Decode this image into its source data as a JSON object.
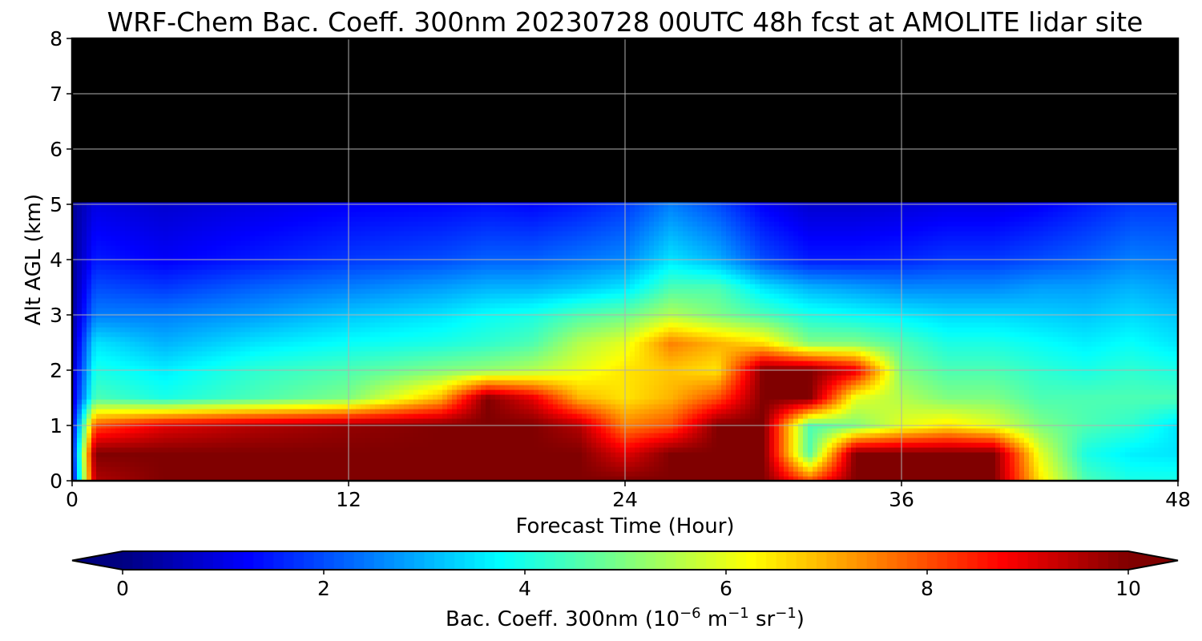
{
  "title": "WRF-Chem Bac. Coeff. 300nm  20230728 00UTC 48h fcst at AMOLITE lidar site",
  "chart_data": {
    "type": "heatmap",
    "title": "WRF-Chem Bac. Coeff. 300nm  20230728 00UTC 48h fcst at AMOLITE lidar site",
    "xlabel": "Forecast Time (Hour)",
    "ylabel": "Alt AGL (km)",
    "xlim": [
      0,
      48
    ],
    "ylim": [
      0,
      8
    ],
    "xticks": [
      "0",
      "12",
      "24",
      "36",
      "48"
    ],
    "yticks": [
      "0",
      "1",
      "2",
      "3",
      "4",
      "5",
      "6",
      "7",
      "8"
    ],
    "grid": true,
    "colorbar": {
      "label_prefix": "Bac. Coeff. 300nm  (10",
      "label_exp1": "−6",
      "label_mid": " m",
      "label_exp2": "−1",
      "label_mid2": " sr",
      "label_exp3": "−1",
      "label_suffix": ")",
      "range": [
        0,
        10
      ],
      "ticks": [
        "0",
        "2",
        "4",
        "6",
        "8",
        "10"
      ],
      "colormap": "jet",
      "extend": "both"
    },
    "x": [
      0,
      1,
      4,
      8,
      12,
      16,
      18,
      20,
      22,
      24,
      26,
      28,
      30,
      32,
      34,
      36,
      38,
      40,
      42,
      44,
      46,
      48
    ],
    "levels": [
      0,
      0.5,
      1,
      1.5,
      2,
      2.5,
      3,
      3.5,
      4,
      5,
      6,
      7,
      8
    ],
    "z": [
      [
        1.0,
        1.2,
        1.0,
        0.8,
        0.6,
        0.4,
        0.3,
        0.2,
        0.2,
        0.2
      ],
      [
        9.5,
        10.0,
        8.0,
        4.5,
        4.0,
        3.5,
        2.5,
        2.0,
        1.5,
        1.0
      ],
      [
        10.0,
        10.0,
        9.0,
        4.0,
        3.6,
        3.0,
        2.5,
        1.8,
        1.2,
        0.8
      ],
      [
        10.0,
        10.0,
        9.5,
        4.5,
        4.2,
        3.5,
        2.8,
        2.2,
        1.5,
        1.0
      ],
      [
        10.0,
        10.0,
        9.8,
        5.0,
        4.5,
        3.8,
        3.2,
        2.5,
        1.8,
        1.2
      ],
      [
        10.0,
        10.0,
        10.0,
        7.0,
        5.0,
        4.0,
        3.5,
        2.8,
        2.0,
        1.3
      ],
      [
        10.0,
        10.0,
        10.0,
        10.0,
        5.2,
        4.2,
        3.8,
        3.0,
        2.2,
        1.4
      ],
      [
        10.0,
        10.0,
        10.0,
        9.0,
        5.5,
        4.5,
        4.0,
        3.0,
        2.2,
        1.3
      ],
      [
        10.0,
        10.0,
        9.5,
        7.0,
        6.0,
        5.5,
        4.5,
        3.2,
        2.4,
        1.5
      ],
      [
        10.0,
        9.0,
        7.5,
        6.5,
        6.5,
        6.0,
        4.8,
        3.5,
        2.6,
        1.8
      ],
      [
        10.0,
        10.0,
        8.0,
        7.0,
        6.8,
        7.5,
        5.5,
        4.5,
        3.5,
        2.5
      ],
      [
        10.0,
        10.0,
        10.0,
        8.0,
        6.5,
        7.0,
        5.0,
        4.5,
        3.0,
        2.0
      ],
      [
        10.0,
        10.0,
        10.0,
        10.0,
        10.0,
        6.5,
        4.5,
        3.5,
        2.0,
        1.2
      ],
      [
        8.0,
        4.5,
        4.5,
        10.0,
        10.0,
        5.0,
        4.0,
        3.0,
        1.5,
        0.8
      ],
      [
        10.0,
        10.0,
        5.0,
        6.0,
        9.0,
        5.0,
        3.8,
        2.8,
        1.5,
        0.8
      ],
      [
        10.0,
        10.0,
        6.0,
        5.5,
        5.0,
        4.5,
        3.6,
        2.6,
        1.6,
        0.9
      ],
      [
        10.0,
        10.0,
        6.5,
        5.0,
        4.5,
        4.0,
        3.4,
        2.6,
        1.8,
        1.0
      ],
      [
        10.0,
        10.0,
        6.0,
        5.0,
        4.5,
        4.0,
        3.4,
        2.6,
        1.8,
        1.0
      ],
      [
        6.5,
        6.0,
        5.0,
        4.5,
        4.2,
        3.8,
        3.3,
        2.8,
        2.0,
        1.2
      ],
      [
        4.5,
        4.0,
        4.5,
        4.5,
        4.0,
        3.6,
        3.2,
        2.8,
        2.2,
        1.5
      ],
      [
        4.0,
        3.6,
        4.2,
        4.5,
        4.2,
        3.8,
        3.4,
        3.0,
        2.5,
        1.8
      ],
      [
        4.0,
        3.5,
        3.5,
        4.5,
        4.0,
        3.5,
        3.2,
        2.8,
        2.4,
        1.8
      ]
    ]
  }
}
